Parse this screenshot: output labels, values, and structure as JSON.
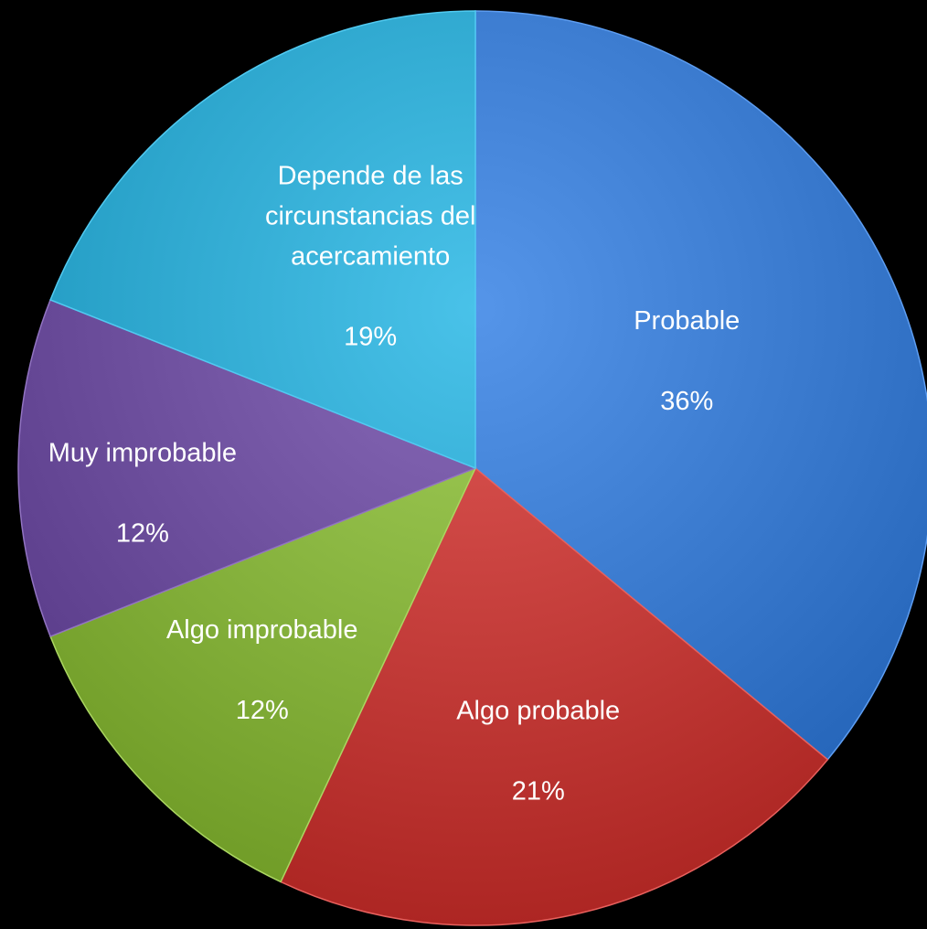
{
  "chart_data": {
    "type": "pie",
    "slices": [
      {
        "label_lines": [
          "Probable"
        ],
        "value": 36,
        "value_label": "36%",
        "color": "#3f7fd3"
      },
      {
        "label_lines": [
          "Algo probable"
        ],
        "value": 21,
        "value_label": "21%",
        "color": "#c9423f"
      },
      {
        "label_lines": [
          "Algo improbable"
        ],
        "value": 12,
        "value_label": "12%",
        "color": "#8cb843"
      },
      {
        "label_lines": [
          "Muy improbable"
        ],
        "value": 12,
        "value_label": "12%",
        "color": "#7355a3"
      },
      {
        "label_lines": [
          "Depende de las",
          "circunstancias del",
          "acercamiento"
        ],
        "value": 19,
        "value_label": "19%",
        "color": "#33acd3"
      }
    ],
    "start": "top",
    "direction": "clockwise",
    "legend": "none"
  }
}
